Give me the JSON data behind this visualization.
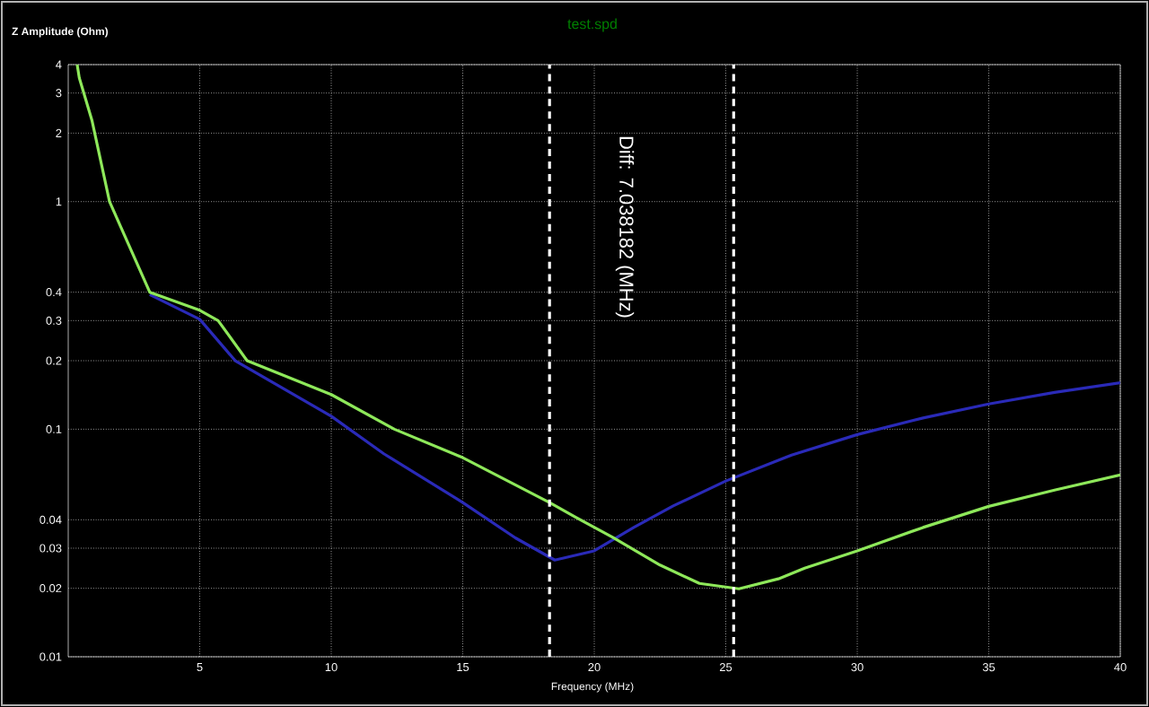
{
  "chart_data": {
    "type": "line",
    "title": "test.spd",
    "xlabel": "Frequency (MHz)",
    "ylabel": "Z Amplitude (Ohm)",
    "annotations": [
      "Diff: 7.038182 (MHz)"
    ],
    "log": "y",
    "grid": true,
    "xlim": [
      0,
      40
    ],
    "ylim": [
      0.01,
      4
    ],
    "xticks": [
      5,
      10,
      15,
      20,
      25,
      30,
      35,
      40
    ],
    "yticks": [
      0.01,
      0.02,
      0.03,
      0.04,
      0.1,
      0.2,
      0.3,
      0.4,
      1,
      2,
      3,
      4
    ],
    "ref_lines": [
      {
        "axis": "x",
        "value": 18.3,
        "color": "#ffffff",
        "line_style": "dashed"
      },
      {
        "axis": "x",
        "value": 25.3,
        "color": "#ffffff",
        "line_style": "dashed"
      }
    ],
    "series": [
      {
        "color": "#2a2ab8",
        "x": [
          3.1,
          5,
          6.35,
          10,
          12,
          15,
          17,
          18.5,
          20,
          21.5,
          23,
          25,
          27.5,
          30,
          32.5,
          35,
          37.5,
          40
        ],
        "values": [
          0.39,
          0.304,
          0.2,
          0.114,
          0.078,
          0.0476,
          0.0333,
          0.0266,
          0.0292,
          0.037,
          0.046,
          0.0592,
          0.077,
          0.0947,
          0.112,
          0.129,
          0.145,
          0.16
        ]
      },
      {
        "color": "#8ee85a",
        "x": [
          0.34,
          0.42,
          0.9,
          1.57,
          3.1,
          5,
          5.7,
          6.8,
          10,
          12.4,
          15,
          18.3,
          19.3,
          20.7,
          22.5,
          24,
          25.5,
          27,
          28,
          30,
          32.5,
          35,
          37.5,
          40
        ],
        "values": [
          4,
          3.5,
          2.28,
          1,
          0.4,
          0.333,
          0.3,
          0.2,
          0.142,
          0.1,
          0.075,
          0.0476,
          0.041,
          0.0335,
          0.0253,
          0.021,
          0.0199,
          0.022,
          0.0245,
          0.0292,
          0.037,
          0.0458,
          0.054,
          0.063
        ]
      }
    ]
  }
}
